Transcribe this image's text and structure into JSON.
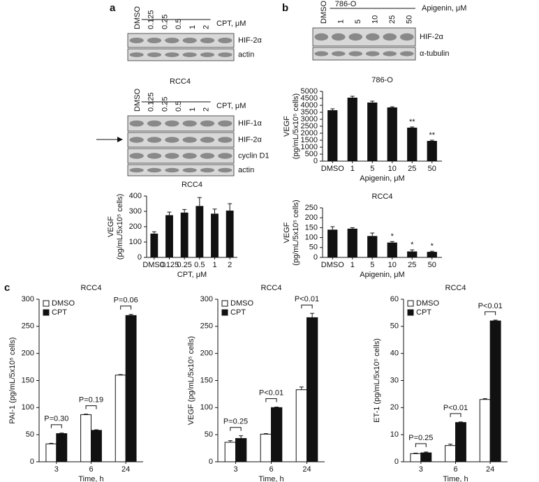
{
  "panels": [
    "a",
    "b",
    "c"
  ],
  "blots": [
    {
      "lanes": [
        "DMSO",
        "0.125",
        "0.25",
        "0.5",
        "1",
        "2"
      ],
      "treatment": "CPT, μM",
      "bands": [
        "HIF-2α",
        "actin"
      ]
    },
    {
      "title": "RCC4",
      "lanes": [
        "DMSO",
        "0.125",
        "0.25",
        "0.5",
        "1",
        "2"
      ],
      "treatment": "CPT, μM",
      "bands": [
        "HIF-1α",
        "HIF-2α",
        "cyclin D1",
        "actin"
      ]
    },
    {
      "title": "786-O",
      "lanes": [
        "DMSO",
        "1",
        "5",
        "10",
        "25",
        "50"
      ],
      "treatment": "Apigenin, μM",
      "bands": [
        "HIF-2α",
        "α-tubulin"
      ]
    }
  ],
  "chart_data": [
    {
      "type": "bar",
      "title": "786-O",
      "ylabel": [
        "VEGF",
        "(pg/mL/5x10⁵ cells)"
      ],
      "xlabel": "Apigenin, μM",
      "categories": [
        "DMSO",
        "1",
        "5",
        "10",
        "25",
        "50"
      ],
      "values": [
        3650,
        4550,
        4200,
        3850,
        2400,
        1450
      ],
      "errors": [
        100,
        100,
        100,
        50,
        50,
        50
      ],
      "value_annotations": [
        null,
        null,
        null,
        null,
        "**",
        "**"
      ],
      "color": "#111111",
      "ylim": [
        0,
        5000
      ],
      "yticks": [
        0,
        500,
        1000,
        1500,
        2000,
        2500,
        3000,
        3500,
        4000,
        4500,
        5000
      ]
    },
    {
      "type": "bar",
      "title": "RCC4",
      "ylabel": [
        "VEGF",
        "(pg/mL/5x10⁵ cells)"
      ],
      "xlabel": "CPT, μM",
      "categories": [
        "DMSO",
        "0.125",
        "0.25",
        "0.5",
        "1",
        "2"
      ],
      "values": [
        155,
        275,
        292,
        335,
        285,
        305
      ],
      "errors": [
        12,
        20,
        20,
        55,
        30,
        45
      ],
      "color": "#111111",
      "ylim": [
        0,
        400
      ],
      "yticks": [
        0,
        100,
        200,
        300,
        400
      ]
    },
    {
      "type": "bar",
      "title": "RCC4",
      "ylabel": [
        "VEGF",
        "(pg/mL/5x10⁵ cells)"
      ],
      "xlabel": "Apigenin, μM",
      "categories": [
        "DMSO",
        "1",
        "5",
        "10",
        "25",
        "50"
      ],
      "values": [
        140,
        145,
        108,
        75,
        30,
        28
      ],
      "errors": [
        15,
        5,
        15,
        5,
        8,
        3
      ],
      "value_annotations": [
        null,
        null,
        null,
        "*",
        "*",
        "*"
      ],
      "color": "#111111",
      "ylim": [
        0,
        250
      ],
      "yticks": [
        0,
        50,
        100,
        150,
        200,
        250
      ]
    },
    {
      "type": "grouped_bar",
      "title": "RCC4",
      "ylabel": [
        "PAI-1 (pg/mL/5x10⁵ cells)"
      ],
      "xlabel": "Time, h",
      "categories": [
        "3",
        "6",
        "24"
      ],
      "group_annotations": [
        "P=0.30",
        "P=0.19",
        "P=0.06"
      ],
      "series": [
        {
          "name": "DMSO",
          "color": "#ffffff",
          "values": [
            33,
            87,
            160
          ],
          "errors": [
            1,
            1,
            1
          ]
        },
        {
          "name": "CPT",
          "color": "#111111",
          "values": [
            52,
            58,
            270
          ],
          "errors": [
            1,
            1,
            2
          ]
        }
      ],
      "ylim": [
        0,
        300
      ],
      "yticks": [
        0,
        50,
        100,
        150,
        200,
        250,
        300
      ],
      "legend": "upper-left"
    },
    {
      "type": "grouped_bar",
      "title": "RCC4",
      "ylabel": [
        "VEGF (pg/mL/5x10⁵ cells)"
      ],
      "xlabel": "Time, h",
      "categories": [
        "3",
        "6",
        "24"
      ],
      "group_annotations": [
        "P=0.25",
        "P<0.01",
        "P<0.01"
      ],
      "series": [
        {
          "name": "DMSO",
          "color": "#ffffff",
          "values": [
            36,
            51,
            133
          ],
          "errors": [
            3,
            1,
            5
          ]
        },
        {
          "name": "CPT",
          "color": "#111111",
          "values": [
            43,
            100,
            266
          ],
          "errors": [
            5,
            1,
            8
          ]
        }
      ],
      "ylim": [
        0,
        300
      ],
      "yticks": [
        0,
        50,
        100,
        150,
        200,
        250,
        300
      ],
      "legend": "upper-left"
    },
    {
      "type": "grouped_bar",
      "title": "RCC4",
      "ylabel": [
        "ET-1 (pg/mL/5x10⁵ cells)"
      ],
      "xlabel": "Time, h",
      "categories": [
        "3",
        "6",
        "24"
      ],
      "group_annotations": [
        "P=0.25",
        "P<0.01",
        "P<0.01"
      ],
      "series": [
        {
          "name": "DMSO",
          "color": "#ffffff",
          "values": [
            3,
            6,
            23
          ],
          "errors": [
            0.2,
            0.5,
            0.3
          ]
        },
        {
          "name": "CPT",
          "color": "#111111",
          "values": [
            3.3,
            14.5,
            52
          ],
          "errors": [
            0.3,
            0.2,
            0.3
          ]
        }
      ],
      "ylim": [
        0,
        60
      ],
      "yticks": [
        0,
        10,
        20,
        30,
        40,
        50,
        60
      ],
      "legend": "upper-left"
    }
  ]
}
